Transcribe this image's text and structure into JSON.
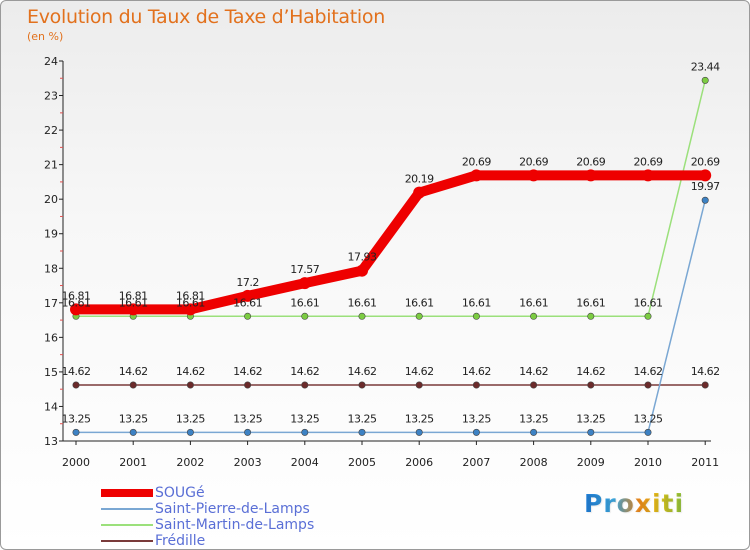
{
  "chart_data": {
    "type": "line",
    "title": "Evolution du Taux de Taxe d’Habitation",
    "ylabel": "(en %)",
    "xlabel": "",
    "x": [
      "2000",
      "2001",
      "2002",
      "2003",
      "2004",
      "2005",
      "2006",
      "2007",
      "2008",
      "2009",
      "2010",
      "2011"
    ],
    "ylim": [
      13,
      24
    ],
    "yticks": [
      13,
      14,
      15,
      16,
      17,
      18,
      19,
      20,
      21,
      22,
      23,
      24
    ],
    "series": [
      {
        "name": "SOUGé",
        "color": "#ee0000",
        "values": [
          16.81,
          16.81,
          16.81,
          17.2,
          17.57,
          17.93,
          20.19,
          20.69,
          20.69,
          20.69,
          20.69,
          20.69
        ],
        "labels": [
          "16.81",
          "16.81",
          "16.81",
          "17.2",
          "17.57",
          "17.93",
          "20.19",
          "20.69",
          "20.69",
          "20.69",
          "20.69",
          "20.69"
        ]
      },
      {
        "name": "Saint-Pierre-de-Lamps",
        "color": "#7aa7d3",
        "marker": "#3d82c4",
        "values": [
          13.25,
          13.25,
          13.25,
          13.25,
          13.25,
          13.25,
          13.25,
          13.25,
          13.25,
          13.25,
          13.25,
          19.97
        ],
        "labels": [
          "13.25",
          "13.25",
          "13.25",
          "13.25",
          "13.25",
          "13.25",
          "13.25",
          "13.25",
          "13.25",
          "13.25",
          "13.25",
          "19.97"
        ]
      },
      {
        "name": "Saint-Martin-de-Lamps",
        "color": "#9be07b",
        "marker": "#7ccc42",
        "values": [
          16.61,
          16.61,
          16.61,
          16.61,
          16.61,
          16.61,
          16.61,
          16.61,
          16.61,
          16.61,
          16.61,
          23.44
        ],
        "labels": [
          "16.61",
          "16.61",
          "16.61",
          "16.61",
          "16.61",
          "16.61",
          "16.61",
          "16.61",
          "16.61",
          "16.61",
          "16.61",
          "23.44"
        ]
      },
      {
        "name": "Frédille",
        "color": "#7a3b3b",
        "marker": "#6b2a2a",
        "values": [
          14.62,
          14.62,
          14.62,
          14.62,
          14.62,
          14.62,
          14.62,
          14.62,
          14.62,
          14.62,
          14.62,
          14.62
        ],
        "labels": [
          "14.62",
          "14.62",
          "14.62",
          "14.62",
          "14.62",
          "14.62",
          "14.62",
          "14.62",
          "14.62",
          "14.62",
          "14.62",
          "14.62"
        ]
      }
    ]
  },
  "brand": "Proxiti"
}
